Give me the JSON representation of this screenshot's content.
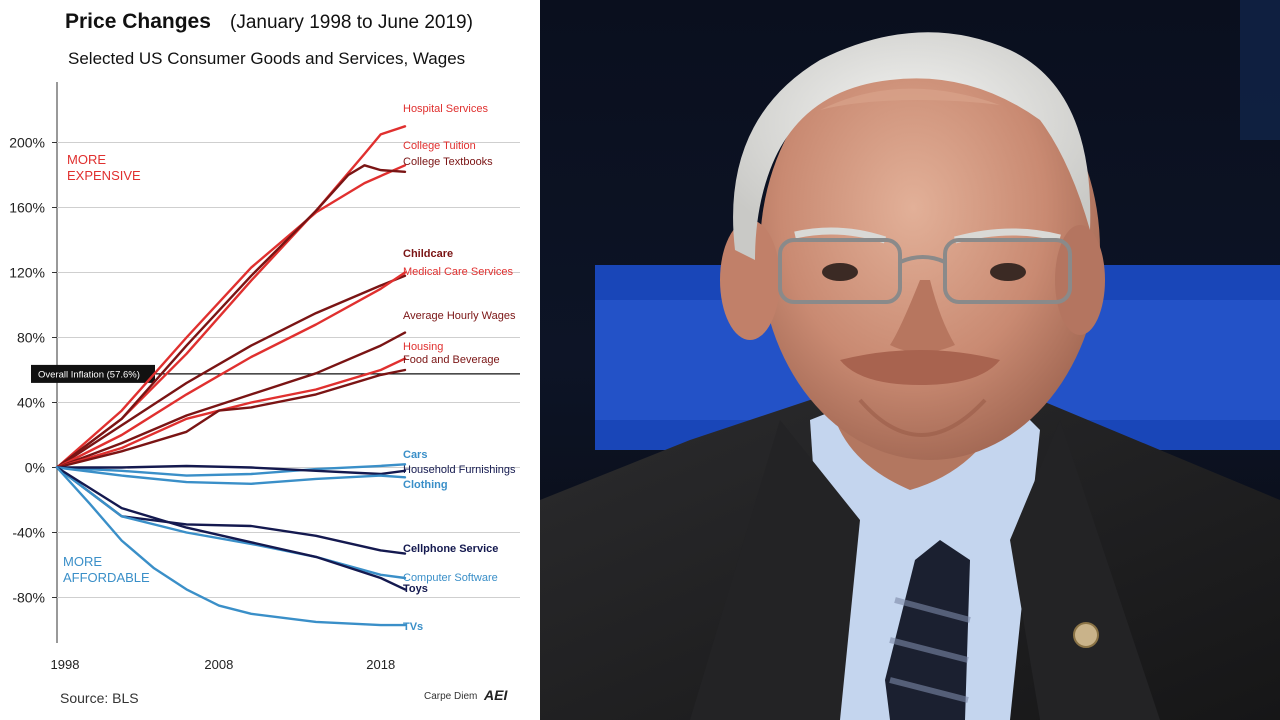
{
  "chart_data": {
    "type": "line",
    "title": "Price Changes",
    "title_period": "(January 1998 to June 2019)",
    "subtitle": "Selected US Consumer Goods and Services, Wages",
    "x_ticks": [
      "1998",
      "2008",
      "2018"
    ],
    "y_ticks": [
      "200%",
      "160%",
      "120%",
      "80%",
      "40%",
      "0%",
      "-40%",
      "-80%"
    ],
    "y_tick_values": [
      200,
      160,
      120,
      80,
      40,
      0,
      -40,
      -80
    ],
    "x_tick_values": [
      1998,
      2008,
      2018
    ],
    "xlim": [
      1998,
      2019.5
    ],
    "ylim": [
      -100,
      220
    ],
    "annotations": {
      "more_expensive": [
        "MORE",
        "EXPENSIVE"
      ],
      "more_affordable": [
        "MORE",
        "AFFORDABLE"
      ],
      "overall_inflation": "Overall Inflation (57.6%)",
      "overall_inflation_value": 57.6
    },
    "source": "Source: BLS",
    "credit": "Carpe Diem",
    "credit_logo": "AEI",
    "colors": {
      "bright_red": "#e0302f",
      "dark_red": "#7a1414",
      "navy": "#14194f",
      "light_blue": "#3a8fc8"
    },
    "series": [
      {
        "name": "Hospital Services",
        "color": "#e0302f",
        "x": [
          1998,
          2002,
          2006,
          2010,
          2014,
          2017,
          2018,
          2019.5
        ],
        "y": [
          0,
          30,
          70,
          115,
          158,
          193,
          205,
          210
        ]
      },
      {
        "name": "College Tuition",
        "color": "#e0302f",
        "x": [
          1998,
          2002,
          2006,
          2010,
          2014,
          2017,
          2019.5
        ],
        "y": [
          0,
          35,
          80,
          123,
          157,
          175,
          186
        ]
      },
      {
        "name": "College Textbooks",
        "color": "#7a1414",
        "x": [
          1998,
          2002,
          2006,
          2010,
          2014,
          2016,
          2017,
          2018,
          2019.5
        ],
        "y": [
          0,
          30,
          75,
          118,
          158,
          180,
          186,
          183,
          182
        ]
      },
      {
        "name": "Childcare",
        "color": "#7a1414",
        "x": [
          1998,
          2002,
          2006,
          2010,
          2014,
          2018,
          2019.5
        ],
        "y": [
          0,
          26,
          52,
          75,
          95,
          112,
          118
        ]
      },
      {
        "name": "Medical Care Services",
        "color": "#e0302f",
        "x": [
          1998,
          2002,
          2006,
          2010,
          2014,
          2018,
          2019.5
        ],
        "y": [
          0,
          20,
          45,
          68,
          88,
          110,
          120
        ]
      },
      {
        "name": "Average Hourly Wages",
        "color": "#7a1414",
        "x": [
          1998,
          2002,
          2006,
          2010,
          2014,
          2018,
          2019.5
        ],
        "y": [
          0,
          15,
          32,
          45,
          58,
          75,
          83
        ]
      },
      {
        "name": "Housing",
        "color": "#e0302f",
        "x": [
          1998,
          2002,
          2006,
          2010,
          2014,
          2018,
          2019.5
        ],
        "y": [
          0,
          12,
          30,
          40,
          48,
          60,
          67
        ]
      },
      {
        "name": "Food and Beverage",
        "color": "#7a1414",
        "x": [
          1998,
          2002,
          2006,
          2008,
          2010,
          2014,
          2018,
          2019.5
        ],
        "y": [
          0,
          10,
          22,
          35,
          37,
          45,
          57,
          60
        ]
      },
      {
        "name": "Cars",
        "color": "#3a8fc8",
        "x": [
          1998,
          2002,
          2006,
          2010,
          2014,
          2018,
          2019.5
        ],
        "y": [
          0,
          -2,
          -5,
          -4,
          -1,
          1,
          2
        ]
      },
      {
        "name": "Household Furnishings",
        "color": "#14194f",
        "x": [
          1998,
          2002,
          2006,
          2010,
          2014,
          2018,
          2019.5
        ],
        "y": [
          0,
          0,
          1,
          0,
          -2,
          -4,
          -2
        ]
      },
      {
        "name": "Clothing",
        "color": "#3a8fc8",
        "x": [
          1998,
          2002,
          2006,
          2010,
          2014,
          2018,
          2019.5
        ],
        "y": [
          0,
          -5,
          -9,
          -10,
          -7,
          -5,
          -6
        ]
      },
      {
        "name": "Cellphone Service",
        "color": "#14194f",
        "x": [
          1998,
          2002,
          2006,
          2010,
          2014,
          2018,
          2019.5
        ],
        "y": [
          0,
          -30,
          -35,
          -36,
          -42,
          -51,
          -53
        ]
      },
      {
        "name": "Computer Software",
        "color": "#3a8fc8",
        "x": [
          1998,
          2002,
          2006,
          2010,
          2014,
          2018,
          2019.5
        ],
        "y": [
          0,
          -30,
          -40,
          -47,
          -55,
          -66,
          -68
        ]
      },
      {
        "name": "Toys",
        "color": "#14194f",
        "x": [
          1998,
          2002,
          2006,
          2010,
          2014,
          2018,
          2019.5
        ],
        "y": [
          0,
          -25,
          -37,
          -46,
          -55,
          -68,
          -75
        ]
      },
      {
        "name": "TVs",
        "color": "#3a8fc8",
        "x": [
          1998,
          2000,
          2002,
          2004,
          2006,
          2008,
          2010,
          2014,
          2018,
          2019.5
        ],
        "y": [
          0,
          -22,
          -45,
          -62,
          -75,
          -85,
          -90,
          -95,
          -97,
          -97
        ]
      }
    ],
    "grid": true,
    "legend": "end-of-line labels"
  }
}
